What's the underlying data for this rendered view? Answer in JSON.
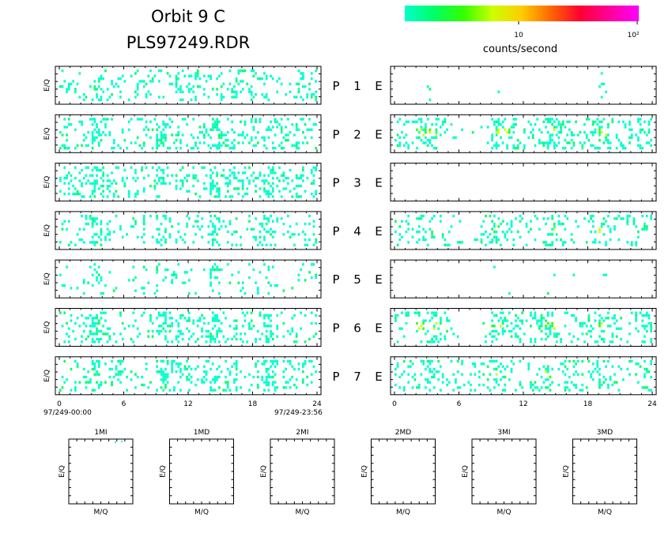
{
  "header": {
    "title_line1": "Orbit 9 C",
    "title_line2": "PLS97249.RDR"
  },
  "colorbar": {
    "label": "counts/second",
    "tick_10": "10",
    "tick_100": "10²",
    "colors": [
      "#00ffcc",
      "#00ff66",
      "#33ff00",
      "#ccff00",
      "#ffcc00",
      "#ff6600",
      "#ff0033",
      "#ff0099",
      "#ff00ff"
    ]
  },
  "chart_data": {
    "type": "heatmap",
    "rows": [
      {
        "pair": "1",
        "left_label": "P",
        "right_label": "E",
        "left_ylabel": "E/Q",
        "left_activity": [
          0.35,
          0.25,
          0.2,
          0.55,
          0.3,
          0.15,
          0.15,
          0.25,
          0.5,
          0.2,
          0.2,
          0.25,
          0.5,
          0.2,
          0.25,
          0.3,
          0.5,
          0.2,
          0.25,
          0.3,
          0.15,
          0.2,
          0.3,
          0.25
        ],
        "right_activity": [
          0,
          0,
          0,
          0.05,
          0,
          0,
          0,
          0,
          0,
          0.05,
          0,
          0,
          0,
          0,
          0,
          0,
          0,
          0,
          0,
          0.05,
          0,
          0,
          0,
          0
        ]
      },
      {
        "pair": "2",
        "left_label": "P",
        "right_label": "E",
        "left_ylabel": "E/Q",
        "left_activity": [
          0.3,
          0.25,
          0.3,
          0.65,
          0.3,
          0.2,
          0.2,
          0.3,
          0.3,
          0.65,
          0.3,
          0.3,
          0.3,
          0.3,
          0.7,
          0.4,
          0.35,
          0.3,
          0.35,
          0.6,
          0.4,
          0.35,
          0.3,
          0.35
        ],
        "right_activity": [
          0.3,
          0.3,
          0.5,
          0.6,
          0.3,
          0.05,
          0.05,
          0.05,
          0.05,
          0.6,
          0.5,
          0.4,
          0.4,
          0.45,
          0.6,
          0.4,
          0.35,
          0.3,
          0.45,
          0.55,
          0.35,
          0.3,
          0.3,
          0.35
        ]
      },
      {
        "pair": "3",
        "left_label": "P",
        "right_label": "E",
        "left_ylabel": "E/Q",
        "left_activity": [
          0.4,
          0.35,
          0.4,
          0.7,
          0.4,
          0.35,
          0.3,
          0.35,
          0.35,
          0.7,
          0.4,
          0.35,
          0.4,
          0.35,
          0.75,
          0.4,
          0.35,
          0.35,
          0.4,
          0.7,
          0.4,
          0.35,
          0.4,
          0.45
        ],
        "right_activity": [
          0,
          0,
          0,
          0,
          0,
          0,
          0,
          0,
          0,
          0,
          0,
          0,
          0,
          0,
          0,
          0,
          0,
          0,
          0,
          0,
          0,
          0,
          0,
          0
        ]
      },
      {
        "pair": "4",
        "left_label": "P",
        "right_label": "E",
        "left_ylabel": "E/Q",
        "left_activity": [
          0.25,
          0.2,
          0.2,
          0.6,
          0.2,
          0.15,
          0.15,
          0.2,
          0.2,
          0.6,
          0.2,
          0.2,
          0.25,
          0.2,
          0.6,
          0.2,
          0.2,
          0.2,
          0.25,
          0.55,
          0.2,
          0.2,
          0.25,
          0.3
        ],
        "right_activity": [
          0.25,
          0.2,
          0.45,
          0.55,
          0.2,
          0.15,
          0.15,
          0.15,
          0.2,
          0.55,
          0.3,
          0.25,
          0.25,
          0.3,
          0.55,
          0.25,
          0.2,
          0.2,
          0.3,
          0.5,
          0.2,
          0.2,
          0.2,
          0.4
        ]
      },
      {
        "pair": "5",
        "left_label": "P",
        "right_label": "E",
        "left_ylabel": "E/Q",
        "left_activity": [
          0.1,
          0.05,
          0.1,
          0.45,
          0.1,
          0.05,
          0.05,
          0.05,
          0.1,
          0.3,
          0.15,
          0.1,
          0.1,
          0.1,
          0.4,
          0.15,
          0.1,
          0.1,
          0.15,
          0.35,
          0.1,
          0.1,
          0.1,
          0.2
        ],
        "right_activity": [
          0,
          0,
          0.05,
          0.1,
          0,
          0,
          0,
          0,
          0,
          0.1,
          0.05,
          0,
          0,
          0.05,
          0.05,
          0,
          0.05,
          0,
          0,
          0.05,
          0,
          0,
          0,
          0
        ]
      },
      {
        "pair": "6",
        "left_label": "P",
        "right_label": "E",
        "left_ylabel": "E/Q",
        "left_activity": [
          0.3,
          0.25,
          0.3,
          0.6,
          0.3,
          0.2,
          0.2,
          0.25,
          0.3,
          0.65,
          0.35,
          0.3,
          0.3,
          0.3,
          0.7,
          0.35,
          0.3,
          0.3,
          0.35,
          0.6,
          0.35,
          0.3,
          0.3,
          0.35
        ],
        "right_activity": [
          0.3,
          0.25,
          0.5,
          0.6,
          0.25,
          0.05,
          0.05,
          0.05,
          0.1,
          0.6,
          0.45,
          0.35,
          0.3,
          0.35,
          0.6,
          0.35,
          0.3,
          0.3,
          0.35,
          0.55,
          0.3,
          0.2,
          0.2,
          0.35
        ]
      },
      {
        "pair": "7",
        "left_label": "P",
        "right_label": "E",
        "left_ylabel": "E/Q",
        "left_activity": [
          0.3,
          0.3,
          0.3,
          0.6,
          0.3,
          0.25,
          0.25,
          0.25,
          0.3,
          0.65,
          0.35,
          0.3,
          0.3,
          0.3,
          0.65,
          0.35,
          0.3,
          0.3,
          0.35,
          0.6,
          0.35,
          0.3,
          0.3,
          0.35
        ],
        "right_activity": [
          0.3,
          0.3,
          0.35,
          0.45,
          0.3,
          0.25,
          0.25,
          0.25,
          0.25,
          0.5,
          0.35,
          0.3,
          0.3,
          0.3,
          0.5,
          0.3,
          0.3,
          0.25,
          0.35,
          0.45,
          0.3,
          0.25,
          0.2,
          0.3
        ]
      }
    ],
    "x_ticks": [
      "0",
      "6",
      "12",
      "18",
      "24"
    ],
    "x_range": [
      0,
      24
    ],
    "left_start_label": "97/249-00:00",
    "left_end_label": "97/249-23:56",
    "mq_panels": [
      {
        "title": "1MI",
        "xlabel": "M/Q",
        "ylabel": "E/Q"
      },
      {
        "title": "1MD",
        "xlabel": "M/Q",
        "ylabel": "E/Q"
      },
      {
        "title": "2MI",
        "xlabel": "M/Q",
        "ylabel": "E/Q"
      },
      {
        "title": "2MD",
        "xlabel": "M/Q",
        "ylabel": "E/Q"
      },
      {
        "title": "3MI",
        "xlabel": "M/Q",
        "ylabel": "E/Q"
      },
      {
        "title": "3MD",
        "xlabel": "M/Q",
        "ylabel": "E/Q"
      }
    ]
  }
}
